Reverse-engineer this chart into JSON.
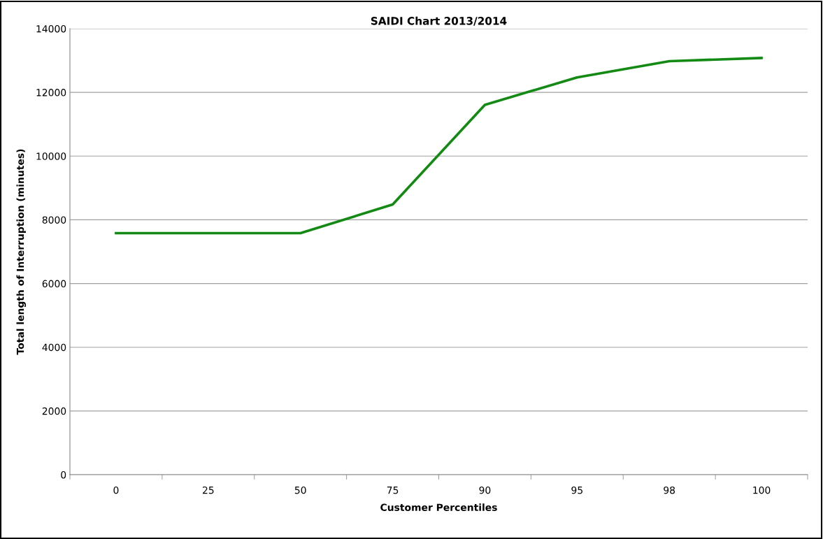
{
  "chart_data": {
    "type": "line",
    "title": "SAIDI Chart 2013/2014",
    "xlabel": "Customer Percentiles",
    "ylabel": "Total length of Interruption (minutes)",
    "categories": [
      "0",
      "25",
      "50",
      "75",
      "90",
      "95",
      "98",
      "100"
    ],
    "series": [
      {
        "color": "#138a13",
        "values": [
          7580,
          7580,
          7580,
          8480,
          11610,
          12470,
          12980,
          13080
        ]
      }
    ],
    "ylim": [
      0,
      14000
    ],
    "yticks": [
      0,
      2000,
      4000,
      6000,
      8000,
      10000,
      12000,
      14000
    ],
    "grid": "y",
    "legend": false,
    "marker": "none",
    "line_style": "solid"
  }
}
